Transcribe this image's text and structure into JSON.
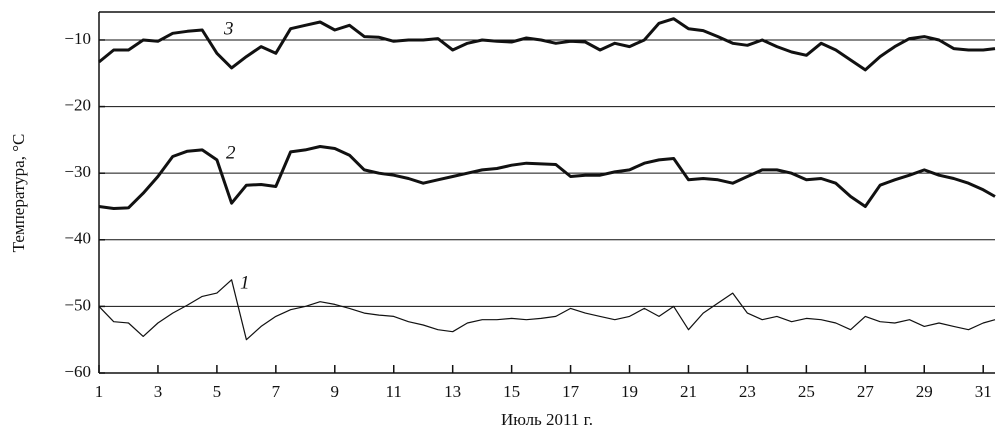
{
  "chart_data": {
    "type": "line",
    "xlabel": "Июль 2011 г.",
    "ylabel": "Температура, °C",
    "x": [
      1,
      1.5,
      2,
      2.5,
      3,
      3.5,
      4,
      4.5,
      5,
      5.5,
      6,
      6.5,
      7,
      7.5,
      8,
      8.5,
      9,
      9.5,
      10,
      10.5,
      11,
      11.5,
      12,
      12.5,
      13,
      13.5,
      14,
      14.5,
      15,
      15.5,
      16,
      16.5,
      17,
      17.5,
      18,
      18.5,
      19,
      19.5,
      20,
      20.5,
      21,
      21.5,
      22,
      22.5,
      23,
      23.5,
      24,
      24.5,
      25,
      25.5,
      26,
      26.5,
      27,
      27.5,
      28,
      28.5,
      29,
      29.5,
      30,
      30.5,
      31,
      31.4
    ],
    "series": [
      {
        "name": "1",
        "color": "#111111",
        "linewidth": 1.2,
        "values": [
          -50,
          -52.3,
          -52.5,
          -54.5,
          -52.5,
          -51,
          -49.8,
          -48.5,
          -48,
          -46,
          -55,
          -53,
          -51.5,
          -50.5,
          -50,
          -49.3,
          -49.7,
          -50.3,
          -51,
          -51.3,
          -51.5,
          -52.3,
          -52.8,
          -53.5,
          -53.8,
          -52.5,
          -52,
          -52,
          -51.8,
          -52,
          -51.8,
          -51.5,
          -50.3,
          -51,
          -51.5,
          -52,
          -51.5,
          -50.3,
          -51.5,
          -50,
          -53.5,
          -51,
          -49.5,
          -48,
          -51,
          -52,
          -51.5,
          -52.3,
          -51.8,
          -52,
          -52.5,
          -53.5,
          -51.5,
          -52.3,
          -52.5,
          -52,
          -53,
          -52.5,
          -53,
          -53.5,
          -52.5,
          -52
        ]
      },
      {
        "name": "2",
        "color": "#111111",
        "linewidth": 3,
        "values": [
          -35,
          -35.3,
          -35.2,
          -33,
          -30.5,
          -27.5,
          -26.7,
          -26.5,
          -28,
          -34.5,
          -31.8,
          -31.7,
          -32,
          -26.8,
          -26.5,
          -26,
          -26.3,
          -27.3,
          -29.5,
          -30,
          -30.3,
          -30.8,
          -31.5,
          -31,
          -30.5,
          -30,
          -29.5,
          -29.3,
          -28.8,
          -28.5,
          -28.6,
          -28.7,
          -30.5,
          -30.3,
          -30.3,
          -29.8,
          -29.5,
          -28.5,
          -28,
          -27.8,
          -31,
          -30.8,
          -31,
          -31.5,
          -30.5,
          -29.5,
          -29.5,
          -30,
          -31,
          -30.8,
          -31.5,
          -33.5,
          -35,
          -31.8,
          -31,
          -30.3,
          -29.5,
          -30.3,
          -30.8,
          -31.5,
          -32.5,
          -33.5
        ]
      },
      {
        "name": "3",
        "color": "#111111",
        "linewidth": 3,
        "values": [
          -13.3,
          -11.5,
          -11.5,
          -10,
          -10.2,
          -9,
          -8.7,
          -8.5,
          -12,
          -14.2,
          -12.5,
          -11,
          -12,
          -8.3,
          -7.8,
          -7.3,
          -8.5,
          -7.8,
          -9.5,
          -9.6,
          -10.2,
          -10,
          -10,
          -9.8,
          -11.5,
          -10.5,
          -10,
          -10.2,
          -10.3,
          -9.7,
          -10,
          -10.5,
          -10.2,
          -10.3,
          -11.5,
          -10.5,
          -11,
          -10,
          -7.5,
          -6.8,
          -8.3,
          -8.6,
          -9.5,
          -10.5,
          -10.8,
          -10,
          -11,
          -11.8,
          -12.3,
          -10.5,
          -11.5,
          -13,
          -14.5,
          -12.5,
          -11,
          -9.8,
          -9.5,
          -10,
          -11.3,
          -11.5,
          -11.5,
          -11.3
        ]
      }
    ],
    "xlim": [
      1,
      31.4
    ],
    "ylim": [
      -60,
      -5.8
    ],
    "xticks": [
      1,
      3,
      5,
      7,
      9,
      11,
      13,
      15,
      17,
      19,
      21,
      23,
      25,
      27,
      29,
      31
    ],
    "yticks": [
      {
        "value": -60,
        "label": "−60"
      },
      {
        "value": -50,
        "label": "−50"
      },
      {
        "value": -40,
        "label": "−40"
      },
      {
        "value": -30,
        "label": "−30"
      },
      {
        "value": -20,
        "label": "−20"
      },
      {
        "value": -10,
        "label": "−10"
      }
    ],
    "grid": true
  }
}
